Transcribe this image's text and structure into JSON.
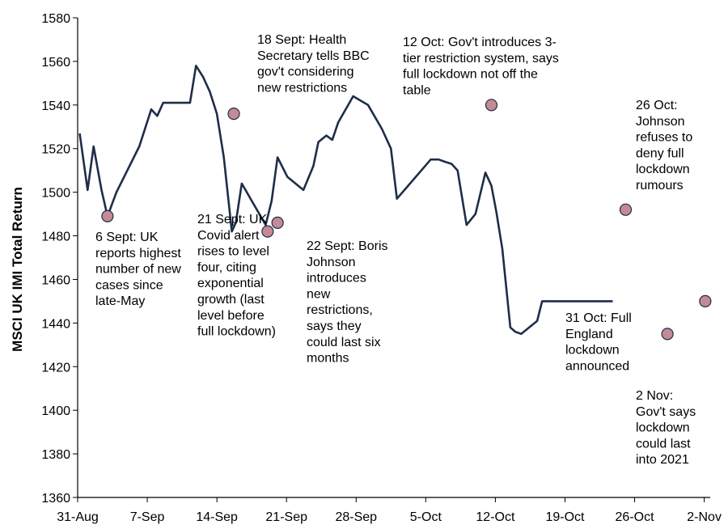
{
  "chart_data": {
    "type": "line",
    "title": "",
    "ylabel": "MSCI UK IMI Total Return",
    "xlabel": "",
    "ylim": [
      1360,
      1580
    ],
    "yticks": [
      1360,
      1380,
      1400,
      1420,
      1440,
      1460,
      1480,
      1500,
      1520,
      1540,
      1560,
      1580
    ],
    "xticks": [
      {
        "label": "31-Aug",
        "day": 0
      },
      {
        "label": "7-Sep",
        "day": 7
      },
      {
        "label": "14-Sep",
        "day": 14
      },
      {
        "label": "21-Sep",
        "day": 21
      },
      {
        "label": "28-Sep",
        "day": 28
      },
      {
        "label": "5-Oct",
        "day": 35
      },
      {
        "label": "12-Oct",
        "day": 42
      },
      {
        "label": "19-Oct",
        "day": 49
      },
      {
        "label": "26-Oct",
        "day": 56
      },
      {
        "label": "2-Nov",
        "day": 63
      }
    ],
    "grid": false,
    "colors": {
      "line": "#1f2d4a",
      "marker": "#c48a96",
      "marker_edge": "#1f2d4a"
    },
    "series": [
      {
        "x": [
          0.2,
          1,
          1.6,
          2.4,
          3,
          3.9,
          6.2,
          7.4,
          8,
          8.6,
          11.3,
          11.9,
          12.6,
          13.3,
          14,
          14.7,
          15.5,
          15.9,
          16.5,
          18.9,
          19.5,
          20.1,
          21.1,
          22.7,
          23.7,
          24.2,
          25,
          25.6,
          26.2,
          27.7,
          29.2,
          30.6,
          31.5,
          32.1,
          35.5,
          36.3,
          36.9,
          37.6,
          38.2,
          39.1,
          40,
          41,
          41.6,
          42.1,
          42.7,
          43.5,
          44,
          44.6,
          46.2,
          46.7,
          48,
          48.8,
          49.5,
          50.2,
          50.7,
          52.2,
          52.7,
          53.3,
          53.8
        ],
        "y": [
          1527,
          1501,
          1521,
          1501,
          1489,
          1500,
          1521,
          1538,
          1535,
          1541,
          1541,
          1558,
          1553,
          1546,
          1536,
          1516,
          1482,
          1486,
          1504,
          1485,
          1496,
          1516,
          1507,
          1501,
          1512,
          1523,
          1526,
          1524,
          1532,
          1544,
          1540,
          1529,
          1520,
          1497,
          1515,
          1515,
          1514,
          1513,
          1510,
          1485,
          1490,
          1509,
          1503,
          1491,
          1474,
          1438,
          1436,
          1435,
          1441,
          1450,
          1450,
          1450,
          1450,
          1450,
          1450,
          1450,
          1450,
          1450,
          1450
        ]
      }
    ],
    "markers": [
      {
        "day": 3.0,
        "value": 1489
      },
      {
        "day": 15.7,
        "value": 1536
      },
      {
        "day": 19.1,
        "value": 1482
      },
      {
        "day": 20.1,
        "value": 1486
      },
      {
        "day": 41.6,
        "value": 1540
      },
      {
        "day": 55.1,
        "value": 1492
      },
      {
        "day": 59.3,
        "value": 1435
      },
      {
        "day": 63.1,
        "value": 1450
      }
    ],
    "annotations": [
      {
        "lines": [
          "6 Sept: UK",
          "reports highest",
          "number of new",
          "cases since",
          "late-May"
        ]
      },
      {
        "lines": [
          "18 Sept: Health",
          "Secretary tells BBC",
          "gov't considering",
          "new restrictions"
        ]
      },
      {
        "lines": [
          "21 Sept: UK",
          "Covid alert",
          "rises to level",
          "four, citing",
          "exponential",
          "growth (last",
          "level before",
          "full lockdown)"
        ]
      },
      {
        "lines": [
          "22 Sept: Boris",
          "Johnson",
          "introduces",
          "new",
          "restrictions,",
          "says they",
          "could last six",
          "months"
        ]
      },
      {
        "lines": [
          "12 Oct: Gov't introduces 3-",
          "tier restriction system, says",
          "full lockdown not off the",
          "table"
        ]
      },
      {
        "lines": [
          "26 Oct:",
          "Johnson",
          "refuses to",
          "deny full",
          "lockdown",
          "rumours"
        ]
      },
      {
        "lines": [
          "31 Oct: Full",
          "England",
          "lockdown",
          "announced"
        ]
      },
      {
        "lines": [
          "2 Nov:",
          "Gov't says",
          "lockdown",
          "could last",
          "into 2021"
        ]
      }
    ]
  }
}
